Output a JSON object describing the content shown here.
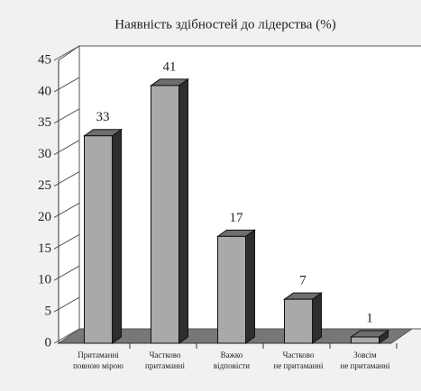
{
  "chart_data": {
    "type": "bar3d",
    "title": "Наявність здібностей до лідерства (%)",
    "categories": [
      [
        "Притаманні",
        "повною мірою"
      ],
      [
        "Частково",
        "притаманні"
      ],
      [
        "Важко",
        "відповісти"
      ],
      [
        "Частково",
        "не притаманні"
      ],
      [
        "Зовсім",
        "не притаманні"
      ]
    ],
    "values": [
      33,
      41,
      17,
      7,
      1
    ],
    "color": "#a9a9a9",
    "ylim": [
      0,
      45
    ],
    "yticks": [
      0,
      5,
      10,
      15,
      20,
      25,
      30,
      35,
      40,
      45
    ]
  }
}
